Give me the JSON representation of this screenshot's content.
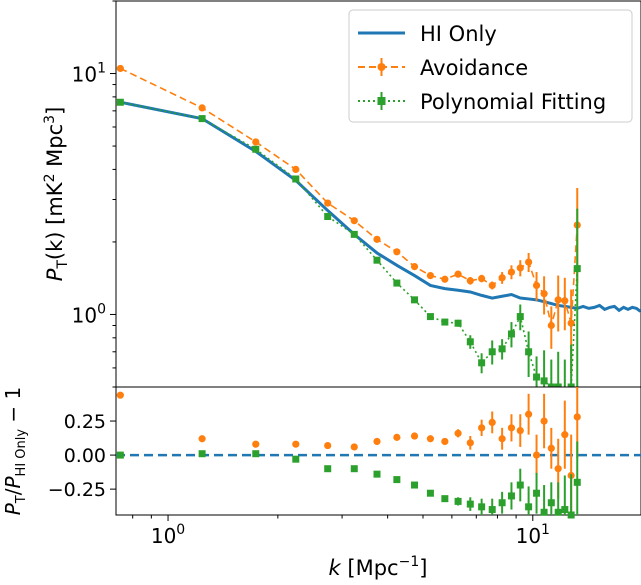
{
  "chart_data": [
    {
      "type": "line",
      "panel": "top",
      "ylabel_main": "P",
      "ylabel_sub": "T",
      "ylabel_rest": "(k) [mK",
      "ylabel_sup1": "2",
      "ylabel_mid": " Mpc",
      "ylabel_sup2": "3",
      "ylabel_end": "]",
      "xscale": "log",
      "yscale": "log",
      "xlim": [
        0.72,
        19.8
      ],
      "ylim": [
        0.5,
        20.0
      ],
      "y_ticks": [
        {
          "value": 1.0,
          "base": "10",
          "exp": "0"
        },
        {
          "value": 10.0,
          "base": "10",
          "exp": "1"
        }
      ],
      "legend_position": "top-right",
      "series": [
        {
          "name": "HI Only",
          "color": "#1f77b4",
          "style": "solid",
          "x": [
            0.74,
            1.24,
            1.74,
            2.24,
            2.74,
            3.24,
            3.74,
            4.24,
            4.74,
            5.24,
            5.74,
            6.24,
            6.74,
            7.24,
            7.74,
            8.24,
            8.74,
            9.24,
            9.74,
            10.24,
            10.74,
            11.24,
            11.74,
            12.24,
            12.74,
            13.24,
            13.74,
            14.24,
            14.74,
            15.24,
            15.74,
            16.24,
            16.74,
            17.24,
            17.74,
            18.24,
            18.74,
            19.24,
            19.74
          ],
          "values": [
            7.6,
            6.5,
            4.75,
            3.6,
            2.7,
            2.15,
            1.8,
            1.6,
            1.45,
            1.32,
            1.28,
            1.26,
            1.24,
            1.2,
            1.17,
            1.19,
            1.21,
            1.17,
            1.16,
            1.15,
            1.13,
            1.11,
            1.09,
            1.08,
            1.07,
            1.06,
            1.08,
            1.06,
            1.07,
            1.09,
            1.05,
            1.07,
            1.08,
            1.04,
            1.07,
            1.05,
            1.07,
            1.06,
            1.03
          ]
        },
        {
          "name": "Avoidance",
          "color": "#ff7f0e",
          "style": "dashed",
          "marker": "circle",
          "x": [
            0.74,
            1.24,
            1.74,
            2.24,
            2.74,
            3.24,
            3.74,
            4.24,
            4.74,
            5.24,
            5.74,
            6.24,
            6.74,
            7.24,
            7.74,
            8.24,
            8.74,
            9.24,
            9.74,
            10.24,
            10.74,
            11.24,
            11.74,
            12.24,
            12.74,
            13.24
          ],
          "values": [
            10.5,
            7.2,
            5.2,
            4.0,
            2.9,
            2.45,
            2.05,
            1.82,
            1.58,
            1.45,
            1.4,
            1.47,
            1.38,
            1.41,
            1.32,
            1.42,
            1.5,
            1.56,
            1.65,
            1.32,
            1.22,
            0.9,
            1.15,
            1.14,
            0.92,
            2.35
          ],
          "errors": [
            0.0,
            0.0,
            0.0,
            0.0,
            0.0,
            0.0,
            0.0,
            0.0,
            0.0,
            0.0,
            0.02,
            0.0,
            0.05,
            0.05,
            0.05,
            0.08,
            0.1,
            0.12,
            0.15,
            0.18,
            0.22,
            0.18,
            0.3,
            0.28,
            0.35,
            1.0
          ]
        },
        {
          "name": "Polynomial Fitting",
          "color": "#2ca02c",
          "style": "dotted",
          "marker": "square",
          "x": [
            0.74,
            1.24,
            1.74,
            2.24,
            2.74,
            3.24,
            3.74,
            4.24,
            4.74,
            5.24,
            5.74,
            6.24,
            6.74,
            7.24,
            7.74,
            8.24,
            8.74,
            9.24,
            9.74,
            10.24,
            10.74,
            11.24,
            11.74,
            12.24,
            12.74,
            13.24
          ],
          "values": [
            7.6,
            6.5,
            4.85,
            3.65,
            2.55,
            2.15,
            1.68,
            1.35,
            1.15,
            0.98,
            0.93,
            0.92,
            0.77,
            0.63,
            0.7,
            0.72,
            0.83,
            0.98,
            0.7,
            0.55,
            0.53,
            0.5,
            0.5,
            0.45,
            0.5,
            1.55
          ],
          "errors": [
            0.0,
            0.0,
            0.0,
            0.0,
            0.0,
            0.0,
            0.0,
            0.0,
            0.0,
            0.0,
            0.02,
            0.03,
            0.05,
            0.06,
            0.08,
            0.07,
            0.1,
            0.12,
            0.15,
            0.12,
            0.18,
            0.15,
            0.2,
            0.2,
            0.25,
            1.2
          ]
        }
      ]
    },
    {
      "type": "scatter",
      "panel": "bottom",
      "ylabel_main": "P",
      "ylabel_sub": "T",
      "ylabel_slash": "/",
      "ylabel_main2": "P",
      "ylabel_sub2": "HI Only",
      "ylabel_end": " − 1",
      "xlabel_main": "k",
      "xlabel_rest": " [Mpc",
      "xlabel_sup": "−1",
      "xlabel_end": "]",
      "xscale": "log",
      "xlim": [
        0.72,
        19.8
      ],
      "ylim": [
        -0.44,
        0.5
      ],
      "x_ticks": [
        {
          "value": 1.0,
          "base": "10",
          "exp": "0"
        },
        {
          "value": 10.0,
          "base": "10",
          "exp": "1"
        }
      ],
      "y_ticks": [
        {
          "value": 0.25,
          "label": "0.25"
        },
        {
          "value": 0.0,
          "label": "0.00"
        },
        {
          "value": -0.25,
          "label": "−0.25"
        }
      ],
      "zero_line": {
        "value": 0.0,
        "color": "#1f77b4",
        "style": "dashed"
      },
      "series": [
        {
          "name": "Avoidance",
          "color": "#ff7f0e",
          "marker": "circle",
          "x": [
            0.74,
            1.24,
            1.74,
            2.24,
            2.74,
            3.24,
            3.74,
            4.24,
            4.74,
            5.24,
            5.74,
            6.24,
            6.74,
            7.24,
            7.74,
            8.24,
            8.74,
            9.24,
            9.74,
            10.24,
            10.74,
            11.24,
            11.74,
            12.24,
            12.74,
            13.24
          ],
          "values": [
            0.44,
            0.12,
            0.08,
            0.08,
            0.07,
            0.06,
            0.1,
            0.13,
            0.14,
            0.12,
            0.1,
            0.16,
            0.09,
            0.2,
            0.24,
            0.12,
            0.2,
            0.18,
            0.3,
            0.0,
            0.25,
            0.05,
            -0.1,
            0.15,
            -0.15,
            0.28
          ],
          "errors": [
            0.0,
            0.0,
            0.0,
            0.0,
            0.0,
            0.0,
            0.0,
            0.0,
            0.0,
            0.0,
            0.02,
            0.03,
            0.05,
            0.06,
            0.08,
            0.08,
            0.1,
            0.12,
            0.15,
            0.15,
            0.2,
            0.15,
            0.22,
            0.25,
            0.3,
            0.3
          ]
        },
        {
          "name": "Polynomial Fitting",
          "color": "#2ca02c",
          "marker": "square",
          "x": [
            0.74,
            1.24,
            1.74,
            2.24,
            2.74,
            3.24,
            3.74,
            4.24,
            4.74,
            5.24,
            5.74,
            6.24,
            6.74,
            7.24,
            7.74,
            8.24,
            8.74,
            9.24,
            9.74,
            10.24,
            10.74,
            11.24,
            11.74,
            12.24,
            12.74,
            13.24
          ],
          "values": [
            0.0,
            0.01,
            0.01,
            -0.03,
            -0.1,
            -0.1,
            -0.14,
            -0.18,
            -0.22,
            -0.28,
            -0.32,
            -0.34,
            -0.36,
            -0.38,
            -0.4,
            -0.35,
            -0.3,
            -0.22,
            -0.38,
            -0.28,
            -0.42,
            -0.35,
            -0.42,
            -0.4,
            -0.44,
            -0.2
          ],
          "errors": [
            0.0,
            0.0,
            0.0,
            0.0,
            0.0,
            0.0,
            0.0,
            0.0,
            0.0,
            0.0,
            0.02,
            0.03,
            0.05,
            0.06,
            0.08,
            0.08,
            0.1,
            0.12,
            0.15,
            0.15,
            0.2,
            0.15,
            0.22,
            0.25,
            0.3,
            0.3
          ]
        }
      ]
    }
  ]
}
